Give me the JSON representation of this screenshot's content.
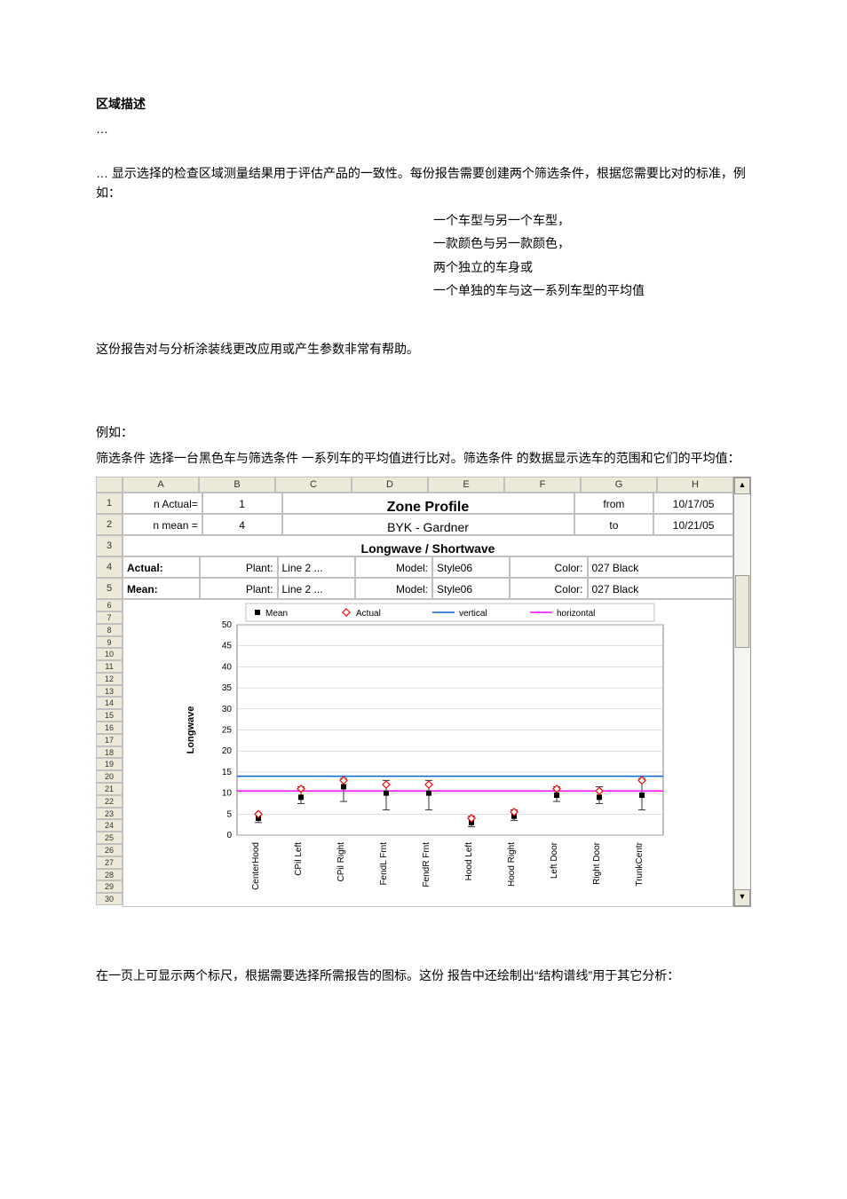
{
  "doc": {
    "heading": "区域描述",
    "ellipsis": "…",
    "intro": "… 显示选择的检查区域测量结果用于评估产品的一致性。每份报告需要创建两个筛选条件，根据您需要比对的标准，例如：",
    "ex1": "一个车型与另一个车型，",
    "ex2": "一款颜色与另一款颜色，",
    "ex3": "两个独立的车身或",
    "ex4": "一个单独的车与这一系列车型的平均值",
    "para2": "这份报告对与分析涂装线更改应用或产生参数非常有帮助。",
    "eg_label": "例如：",
    "para3a": "筛选条件    选择一台黑色车与筛选条件    一系列车的平均值进行比对。筛选条件    的数据显示选车的范围和它们的平均值：",
    "para4": "在一页上可显示两个标尺，根据需要选择所需报告的图标。这份        报告中还绘制出“结构谱线”用于其它分析："
  },
  "sheet": {
    "col_headers": [
      "A",
      "B",
      "C",
      "D",
      "E",
      "F",
      "G",
      "H"
    ],
    "row_headers": [
      "1",
      "2",
      "3",
      "4",
      "5",
      "6",
      "7",
      "8",
      "9",
      "10",
      "11",
      "12",
      "13",
      "14",
      "15",
      "16",
      "17",
      "18",
      "19",
      "20",
      "21",
      "22",
      "23",
      "24",
      "25",
      "26",
      "27",
      "28",
      "29",
      "30"
    ],
    "r1": {
      "a": "n Actual=",
      "b": "1",
      "title": "Zone Profile",
      "g": "from",
      "h": "10/17/05"
    },
    "r2": {
      "a": "n mean =",
      "b": "4",
      "sub": "BYK - Gardner",
      "g": "to",
      "h": "10/21/05"
    },
    "r3": {
      "title": "Longwave / Shortwave"
    },
    "r4": {
      "a": "Actual:",
      "plant": "Plant:",
      "plant_v": "Line 2 ...",
      "model": "Model:",
      "model_v": "Style06",
      "color": "Color:",
      "color_v": "027 Black"
    },
    "r5": {
      "a": "Mean:",
      "plant": "Plant:",
      "plant_v": "Line 2 ...",
      "model": "Model:",
      "model_v": "Style06",
      "color": "Color:",
      "color_v": "027 Black"
    }
  },
  "chart": {
    "type": "error-bar-scatter",
    "ylabel": "Longwave",
    "ylim": [
      0,
      50
    ],
    "ytick_step": 5,
    "yticks": [
      0,
      5,
      10,
      15,
      20,
      25,
      30,
      35,
      40,
      45,
      50
    ],
    "x_categories": [
      "CenterHood",
      "CPil Left",
      "CPil Right",
      "FendL Frnt",
      "FendR Frnt",
      "Hood Left",
      "Hood Right",
      "Left Door",
      "Right Door",
      "TrunkCentr"
    ],
    "legend": [
      {
        "marker": "square",
        "label": "Mean",
        "color": "#000000"
      },
      {
        "marker": "diamond",
        "label": "Actual",
        "color": "#ff0000"
      },
      {
        "marker": "line",
        "label": "vertical",
        "color": "#0066cc"
      },
      {
        "marker": "line",
        "label": "horizontal",
        "color": "#ff00ff"
      }
    ],
    "horizontal_line": 10.5,
    "vertical_line": 14,
    "actual": [
      5,
      11,
      13,
      12,
      12,
      4,
      5.5,
      11,
      10.5,
      13
    ],
    "mean": [
      4,
      9,
      11.5,
      10,
      10,
      3,
      4.5,
      9.5,
      9,
      9.5
    ],
    "err_low": [
      3,
      7.5,
      8,
      6,
      6,
      2,
      3.5,
      8,
      7.5,
      6
    ],
    "err_high": [
      5,
      11.5,
      13.5,
      13,
      13,
      4.5,
      6,
      11.5,
      11.5,
      13.5
    ],
    "colors": {
      "grid": "#bfbfbf",
      "border": "#808080",
      "actual_marker": "#ff0000",
      "mean_marker": "#000000",
      "horizontal": "#ff00ff",
      "vertical": "#0066cc",
      "errbar": "#333333"
    },
    "fontsize_axis": 10,
    "fontsize_label": 11
  }
}
